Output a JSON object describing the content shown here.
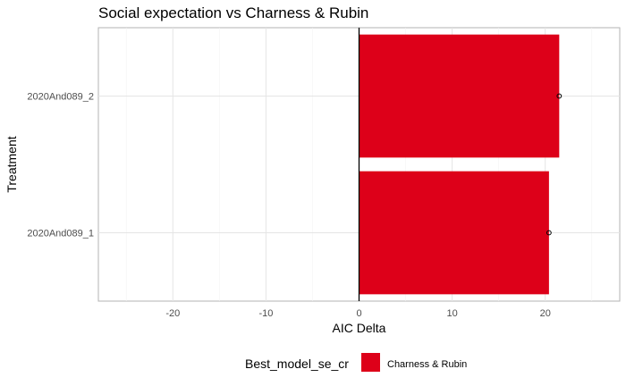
{
  "chart_data": {
    "type": "bar",
    "orientation": "horizontal",
    "title": "Social expectation vs Charness & Rubin",
    "xlabel": "AIC Delta",
    "ylabel": "Treatment",
    "categories": [
      "2020And089_1",
      "2020And089_2"
    ],
    "series": [
      {
        "name": "Charness & Rubin",
        "values": [
          20.4,
          21.5
        ],
        "color": "#dd0019"
      }
    ],
    "points": [
      20.4,
      21.5
    ],
    "xlim": [
      -28,
      28
    ],
    "xticks": [
      -20,
      -10,
      0,
      10,
      20
    ],
    "xtick_labels": [
      "-20",
      "-10",
      "0",
      "10",
      "20"
    ],
    "grid": true,
    "legend": {
      "title": "Best_model_se_cr",
      "position": "bottom"
    }
  }
}
